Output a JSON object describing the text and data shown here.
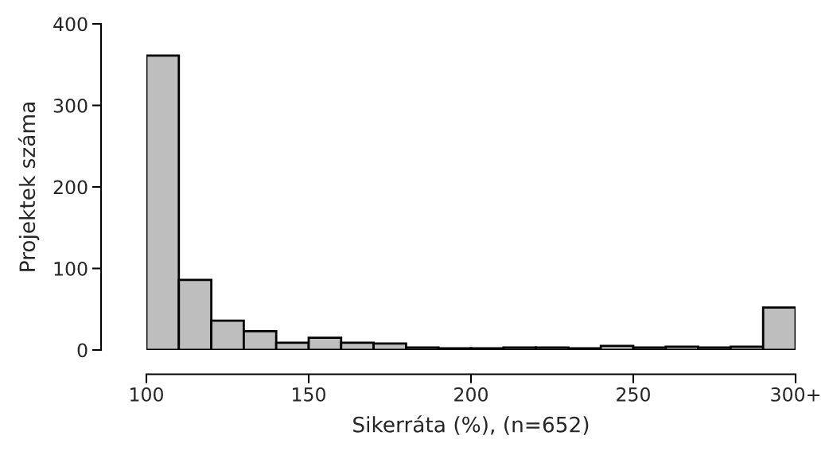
{
  "chart_data": {
    "type": "histogram",
    "xlabel": "Sikerráta (%), (n=652)",
    "ylabel": "Projektek száma",
    "bins": [
      100,
      110,
      120,
      130,
      140,
      150,
      160,
      170,
      180,
      190,
      200,
      210,
      220,
      230,
      240,
      250,
      260,
      270,
      280,
      290,
      300
    ],
    "values": [
      361,
      86,
      36,
      23,
      9,
      15,
      9,
      8,
      3,
      2,
      2,
      3,
      3,
      2,
      5,
      3,
      4,
      3,
      4,
      52
    ],
    "color": "#bebebe",
    "xlim": [
      100,
      300
    ],
    "xticks": [
      100,
      150,
      200,
      250,
      {
        "value": 300,
        "label": "300+"
      }
    ],
    "ylim": [
      0,
      400
    ],
    "yticks": [
      0,
      100,
      200,
      300,
      400
    ],
    "grid": false
  }
}
